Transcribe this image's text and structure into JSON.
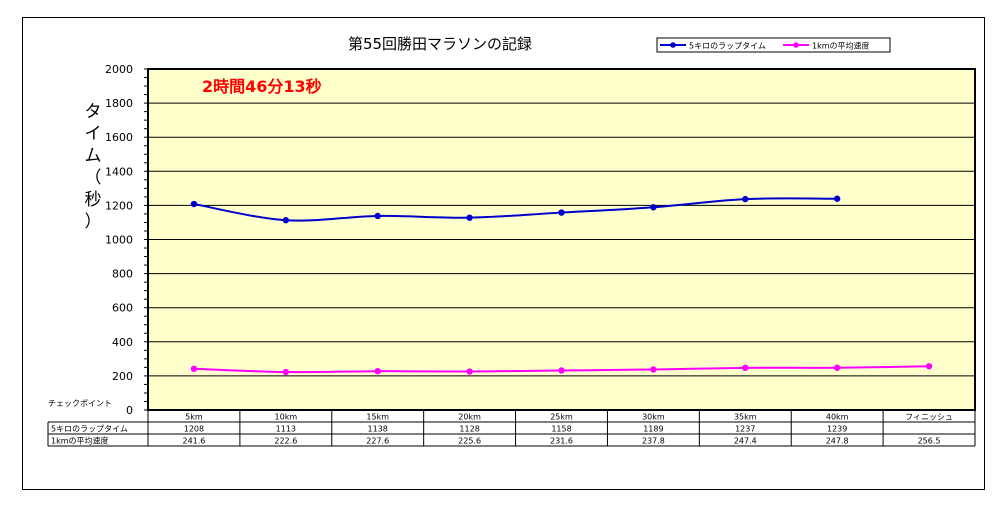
{
  "chart_data": {
    "type": "line",
    "title": "第55回勝田マラソンの記録",
    "annotation": "2時間46分13秒",
    "ylabel": "タイム（秒）",
    "table_header_label": "チェックポイント",
    "ylim": [
      0,
      2000
    ],
    "yticks": [
      0,
      200,
      400,
      600,
      800,
      1000,
      1200,
      1400,
      1600,
      1800,
      2000
    ],
    "grid": true,
    "legend_position": "top-right",
    "plot_background": "#FFFFCC",
    "categories": [
      "5km",
      "10km",
      "15km",
      "20km",
      "25km",
      "30km",
      "35km",
      "40km",
      "フィニッシュ"
    ],
    "series": [
      {
        "name": "5キロのラップタイム",
        "color": "#0000CC",
        "values": [
          1208,
          1113,
          1138,
          1128,
          1158,
          1189,
          1237,
          1239,
          null
        ],
        "row_labels": [
          "1208",
          "1113",
          "1138",
          "1128",
          "1158",
          "1189",
          "1237",
          "1239",
          ""
        ]
      },
      {
        "name": "1kmの平均速度",
        "color": "#FF00FF",
        "values": [
          241.6,
          222.6,
          227.6,
          225.6,
          231.6,
          237.8,
          247.4,
          247.8,
          256.5
        ],
        "row_labels": [
          "241.6",
          "222.6",
          "227.6",
          "225.6",
          "231.6",
          "237.8",
          "247.4",
          "247.8",
          "256.5"
        ]
      }
    ]
  }
}
